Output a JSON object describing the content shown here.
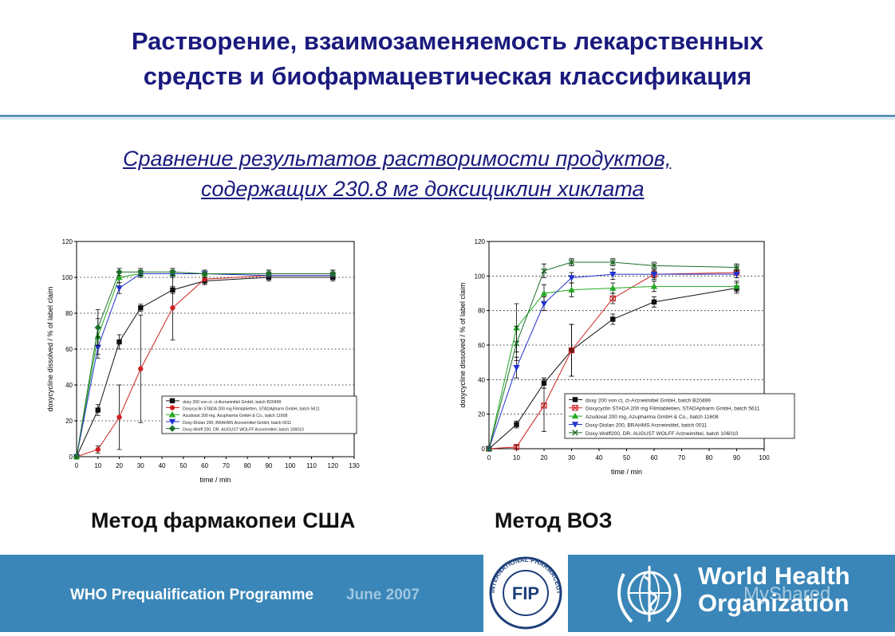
{
  "slide": {
    "title_line1": "Растворение, взаимозаменяемость лекарственных",
    "title_line2": "средств и биофармацевтическая классификация",
    "subtitle_line1": "Сравнение результатов растворимости продуктов,",
    "subtitle_line2": "содержащих 230.8 мг доксициклин хиклата",
    "method_left": "Метод фармакопеи США",
    "method_right": "Метод ВОЗ"
  },
  "footer": {
    "programme": "WHO Prequalification Programme",
    "date": "June 2007",
    "fip_text": "FIP",
    "fip_ring": "INTERNATIONAL PHARMACEUTICAL FEDERATION",
    "who_line1": "World Health",
    "who_line2": "Organization",
    "watermark": "MyShared"
  },
  "colors": {
    "title": "#1a1a7e",
    "footer_bg": "#3a86b8",
    "black": "#111111",
    "red": "#cc2222",
    "green": "#22aa22",
    "blue": "#2233cc",
    "darkgreen": "#1f6f2a"
  },
  "chart_data": [
    {
      "type": "line",
      "xlabel": "time / min",
      "ylabel": "doxycycline dissolved / % of label claim",
      "xlim": [
        0,
        130
      ],
      "ylim": [
        0,
        120
      ],
      "xticks": [
        0,
        10,
        20,
        30,
        40,
        50,
        60,
        70,
        80,
        90,
        100,
        110,
        120,
        130
      ],
      "yticks": [
        0,
        20,
        40,
        60,
        80,
        100,
        120
      ],
      "grid": "dotted horizontal",
      "legend_position": "bottom-right",
      "series": [
        {
          "name": "doxy 200 von ct, ct-Arzneimittel GmbH, batch B20499",
          "color": "black",
          "marker": "square",
          "x": [
            0,
            10,
            20,
            30,
            45,
            60,
            90,
            120
          ],
          "y": [
            0,
            26,
            64,
            83,
            93,
            98,
            100,
            100
          ],
          "err": [
            0,
            3,
            4,
            2,
            2,
            2,
            2,
            2
          ]
        },
        {
          "name": "Doxycyclin STADA 200 mg Filmtabletten, STADApharm GmbH, batch 5611",
          "color": "red",
          "marker": "circle",
          "x": [
            0,
            10,
            20,
            30,
            45,
            60,
            90,
            120
          ],
          "y": [
            0,
            4,
            22,
            49,
            83,
            99,
            101,
            101
          ],
          "err": [
            0,
            2,
            18,
            30,
            18,
            3,
            2,
            2
          ]
        },
        {
          "name": "Azudoxat 200 mg, Azupharma GmbH & Co., batch 11608",
          "color": "green",
          "marker": "triangle-up",
          "x": [
            0,
            10,
            20,
            30,
            45,
            60,
            90,
            120
          ],
          "y": [
            0,
            67,
            100,
            102,
            102,
            102,
            102,
            102
          ],
          "err": [
            0,
            10,
            3,
            2,
            2,
            2,
            2,
            2
          ]
        },
        {
          "name": "Doxy-Diolan 200, BRAHMS Arzneimittel GmbH, batch 0011",
          "color": "blue",
          "marker": "triangle-down",
          "x": [
            0,
            10,
            20,
            30,
            45,
            60,
            90,
            120
          ],
          "y": [
            0,
            61,
            94,
            102,
            102,
            102,
            101,
            101
          ],
          "err": [
            0,
            6,
            3,
            2,
            2,
            2,
            2,
            2
          ]
        },
        {
          "name": "Doxy-Wolff 200, DR. AUGUST WOLFF Arzneimittel, batch 106010",
          "color": "darkgreen",
          "marker": "diamond",
          "x": [
            0,
            10,
            20,
            30,
            45,
            60,
            90,
            120
          ],
          "y": [
            0,
            72,
            103,
            103,
            103,
            102,
            102,
            102
          ],
          "err": [
            0,
            10,
            2,
            2,
            2,
            2,
            2,
            2
          ]
        }
      ]
    },
    {
      "type": "line",
      "xlabel": "time / min",
      "ylabel": "doxycycline dissolved / % of label claim",
      "xlim": [
        0,
        100
      ],
      "ylim": [
        0,
        120
      ],
      "xticks": [
        0,
        10,
        20,
        30,
        40,
        50,
        60,
        70,
        80,
        90,
        100
      ],
      "yticks": [
        0,
        20,
        40,
        60,
        80,
        100,
        120
      ],
      "grid": "dotted horizontal",
      "legend_position": "bottom-right",
      "series": [
        {
          "name": "doxy 200 von ct, ct-Arzneimittel GmbH, batch B20499",
          "color": "black",
          "marker": "square",
          "x": [
            0,
            10,
            20,
            30,
            45,
            60,
            90
          ],
          "y": [
            0,
            14,
            38,
            57,
            75,
            85,
            93
          ],
          "err": [
            0,
            2,
            3,
            15,
            3,
            3,
            3
          ]
        },
        {
          "name": "Doxycyclin STADA 200 mg Filmtabletten, STADApharm GmbH, batch 5611",
          "color": "red",
          "marker": "x-square",
          "x": [
            0,
            10,
            20,
            30,
            45,
            60,
            90
          ],
          "y": [
            0,
            1,
            25,
            57,
            87,
            101,
            102
          ],
          "err": [
            0,
            1,
            15,
            15,
            3,
            3,
            3
          ]
        },
        {
          "name": "Azudoxal 200 mg, Azupharma GmbH & Co., batch 11608",
          "color": "green",
          "marker": "triangle-up",
          "x": [
            0,
            10,
            20,
            30,
            45,
            60,
            90
          ],
          "y": [
            0,
            70,
            90,
            92,
            93,
            94,
            94
          ],
          "err": [
            0,
            14,
            5,
            4,
            3,
            3,
            3
          ]
        },
        {
          "name": "Doxy-Diolan 200, BRAHMS Arzneimittel, batch 0011",
          "color": "blue",
          "marker": "triangle-down",
          "x": [
            0,
            10,
            20,
            30,
            45,
            60,
            90
          ],
          "y": [
            0,
            47,
            84,
            99,
            101,
            101,
            101
          ],
          "err": [
            0,
            6,
            4,
            3,
            3,
            2,
            2
          ]
        },
        {
          "name": "Doxy-Wolff200, DR. AUGUST WOLFF Arzneimittel, batch 106010",
          "color": "darkgreen",
          "marker": "x",
          "x": [
            0,
            10,
            20,
            30,
            45,
            60,
            90
          ],
          "y": [
            0,
            61,
            103,
            108,
            108,
            106,
            105
          ],
          "err": [
            0,
            10,
            4,
            2,
            2,
            2,
            2
          ]
        }
      ]
    }
  ]
}
